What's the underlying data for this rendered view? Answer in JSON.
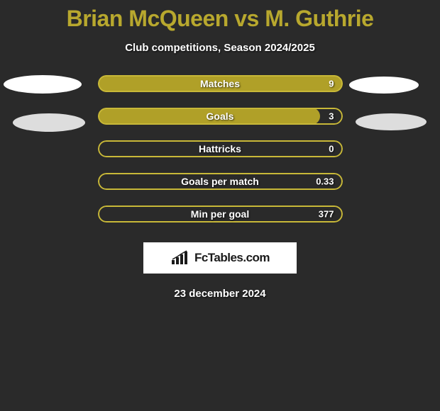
{
  "title": "Brian McQueen vs M. Guthrie",
  "subtitle": "Club competitions, Season 2024/2025",
  "colors": {
    "background": "#2a2a2a",
    "title": "#b8a82e",
    "text": "#ffffff",
    "bar_fill": "#b0a028",
    "bar_border": "#c8b838",
    "brand_bg": "#ffffff",
    "brand_text": "#1a1a1a",
    "ellipse_white": "#ffffff",
    "ellipse_grey": "#dddddd"
  },
  "stats": [
    {
      "label": "Matches",
      "value": "9",
      "fill_pct": 100,
      "border_pct": 100
    },
    {
      "label": "Goals",
      "value": "3",
      "fill_pct": 91,
      "border_pct": 100
    },
    {
      "label": "Hattricks",
      "value": "0",
      "fill_pct": 0,
      "border_pct": 100
    },
    {
      "label": "Goals per match",
      "value": "0.33",
      "fill_pct": 0,
      "border_pct": 100
    },
    {
      "label": "Min per goal",
      "value": "377",
      "fill_pct": 0,
      "border_pct": 100
    }
  ],
  "brand": "FcTables.com",
  "date": "23 december 2024"
}
